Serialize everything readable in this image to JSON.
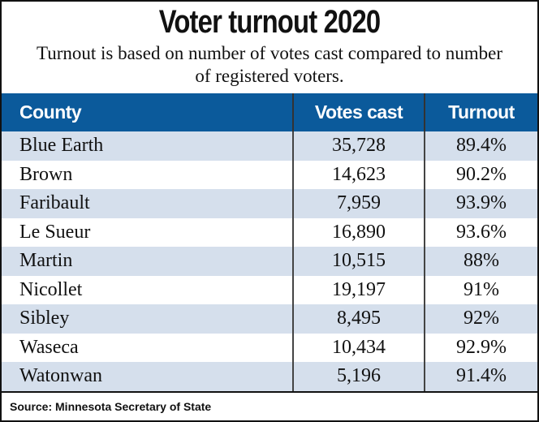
{
  "chart_data": {
    "type": "table",
    "title": "Voter turnout 2020",
    "subtitle": "Turnout is based on number of votes cast compared to number of registered voters.",
    "columns": [
      "County",
      "Votes cast",
      "Turnout"
    ],
    "rows": [
      [
        "Blue Earth",
        "35,728",
        "89.4%"
      ],
      [
        "Brown",
        "14,623",
        "90.2%"
      ],
      [
        "Faribault",
        "7,959",
        "93.9%"
      ],
      [
        "Le Sueur",
        "16,890",
        "93.6%"
      ],
      [
        "Martin",
        "10,515",
        "88%"
      ],
      [
        "Nicollet",
        "19,197",
        "91%"
      ],
      [
        "Sibley",
        "8,495",
        "92%"
      ],
      [
        "Waseca",
        "10,434",
        "92.9%"
      ],
      [
        "Watonwan",
        "5,196",
        "91.4%"
      ]
    ],
    "source": "Source: Minnesota Secretary of State",
    "colors": {
      "header": "#0b5a9b",
      "alt_row": "#d5dfec"
    }
  }
}
